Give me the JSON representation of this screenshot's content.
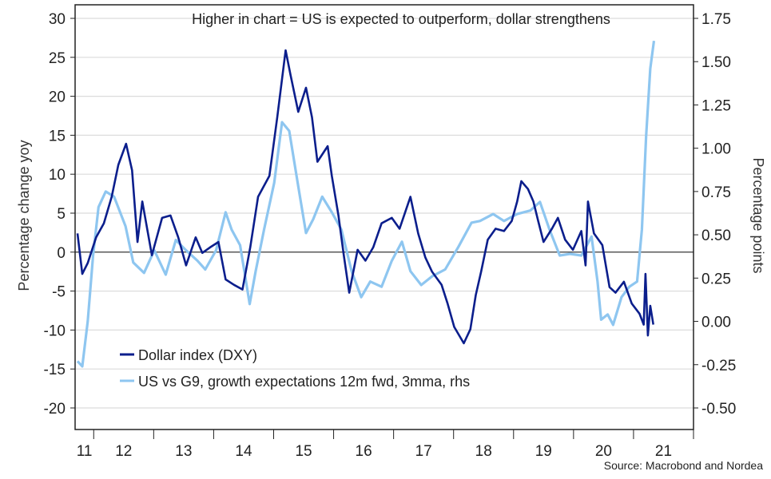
{
  "chart_data": {
    "type": "line",
    "title": "Higher in chart = US is expected to outperform, dollar strengthens",
    "source": "Source: Macrobond and Nordea",
    "ylabel": "Percentage change yoy",
    "ylabel_right": "Percentage points",
    "ylim": [
      -20,
      30
    ],
    "ylim_right": [
      -0.5,
      1.75
    ],
    "yticks": [
      "30",
      "25",
      "20",
      "15",
      "10",
      "5",
      "0",
      "-5",
      "-10",
      "-15",
      "-20"
    ],
    "yticks_right": [
      "1.75",
      "1.50",
      "1.25",
      "1.00",
      "0.75",
      "0.50",
      "0.25",
      "0.00",
      "-0.25",
      "-0.50"
    ],
    "xlim": [
      2011.69,
      2022.0
    ],
    "xtick_labels": [
      "11",
      "12",
      "13",
      "14",
      "15",
      "16",
      "17",
      "18",
      "19",
      "20",
      "21"
    ],
    "grid": true,
    "legend_position": "bottom-left",
    "series": [
      {
        "name": "Dollar index (DXY)",
        "axis": "left",
        "color": "#0b1e8c",
        "x": [
          2011.73,
          2011.81,
          2011.9,
          2012.04,
          2012.17,
          2012.3,
          2012.41,
          2012.54,
          2012.64,
          2012.73,
          2012.81,
          2012.97,
          2013.14,
          2013.28,
          2013.41,
          2013.54,
          2013.7,
          2013.81,
          2013.94,
          2014.08,
          2014.2,
          2014.34,
          2014.48,
          2014.61,
          2014.74,
          2014.93,
          2015.06,
          2015.2,
          2015.28,
          2015.41,
          2015.54,
          2015.64,
          2015.73,
          2015.9,
          2015.97,
          2016.08,
          2016.17,
          2016.26,
          2016.4,
          2016.53,
          2016.66,
          2016.8,
          2016.97,
          2017.1,
          2017.28,
          2017.41,
          2017.53,
          2017.64,
          2017.8,
          2017.9,
          2018.01,
          2018.17,
          2018.28,
          2018.37,
          2018.46,
          2018.57,
          2018.7,
          2018.84,
          2018.97,
          2019.06,
          2019.13,
          2019.24,
          2019.33,
          2019.41,
          2019.5,
          2019.64,
          2019.74,
          2019.86,
          2019.99,
          2020.13,
          2020.2,
          2020.24,
          2020.34,
          2020.48,
          2020.6,
          2020.7,
          2020.84,
          2020.97,
          2021.1,
          2021.17,
          2021.2,
          2021.24,
          2021.28,
          2021.33
        ],
        "y": [
          2.4,
          -2.8,
          -1.4,
          1.9,
          3.7,
          7.1,
          11.2,
          13.9,
          10.5,
          1.3,
          6.5,
          -0.4,
          4.4,
          4.7,
          1.9,
          -1.7,
          1.9,
          -0.1,
          0.6,
          1.3,
          -3.5,
          -4.2,
          -4.8,
          0.6,
          7.1,
          9.8,
          17.3,
          25.9,
          22.8,
          18.0,
          21.1,
          17.3,
          11.6,
          13.6,
          9.8,
          4.7,
          -0.4,
          -5.2,
          0.3,
          -1.1,
          0.6,
          3.7,
          4.4,
          3.0,
          7.1,
          2.4,
          -0.7,
          -2.5,
          -4.2,
          -6.6,
          -9.6,
          -11.7,
          -9.9,
          -5.5,
          -2.5,
          1.6,
          3.0,
          2.7,
          4.0,
          6.5,
          9.1,
          8.1,
          6.5,
          4.0,
          1.3,
          3.0,
          4.4,
          1.6,
          0.3,
          2.7,
          -1.7,
          6.5,
          2.4,
          0.9,
          -4.5,
          -5.2,
          -3.8,
          -6.6,
          -7.9,
          -9.3,
          -2.8,
          -10.7,
          -6.9,
          -9.3
        ]
      },
      {
        "name": "US vs G9, growth expectations 12m fwd, 3mma, rhs",
        "axis": "right",
        "color": "#8ec6f0",
        "x": [
          2011.73,
          2011.81,
          2011.9,
          2011.99,
          2012.08,
          2012.2,
          2012.34,
          2012.53,
          2012.66,
          2012.84,
          2013.01,
          2013.2,
          2013.37,
          2013.54,
          2013.73,
          2013.86,
          2014.04,
          2014.2,
          2014.3,
          2014.44,
          2014.6,
          2014.7,
          2014.84,
          2015.01,
          2015.14,
          2015.26,
          2015.41,
          2015.54,
          2015.66,
          2015.81,
          2015.97,
          2016.13,
          2016.3,
          2016.46,
          2016.61,
          2016.8,
          2016.97,
          2017.14,
          2017.28,
          2017.46,
          2017.64,
          2017.86,
          2018.08,
          2018.3,
          2018.44,
          2018.66,
          2018.84,
          2019.06,
          2019.28,
          2019.44,
          2019.6,
          2019.77,
          2019.94,
          2020.13,
          2020.3,
          2020.4,
          2020.46,
          2020.57,
          2020.66,
          2020.8,
          2020.93,
          2021.06,
          2021.14,
          2021.21,
          2021.28,
          2021.34
        ],
        "y": [
          -0.23,
          -0.26,
          0.0,
          0.38,
          0.66,
          0.75,
          0.72,
          0.55,
          0.34,
          0.28,
          0.41,
          0.27,
          0.47,
          0.41,
          0.35,
          0.3,
          0.41,
          0.63,
          0.53,
          0.44,
          0.1,
          0.29,
          0.53,
          0.8,
          1.15,
          1.1,
          0.78,
          0.51,
          0.59,
          0.72,
          0.63,
          0.53,
          0.29,
          0.14,
          0.23,
          0.2,
          0.35,
          0.46,
          0.29,
          0.21,
          0.26,
          0.3,
          0.43,
          0.57,
          0.58,
          0.62,
          0.58,
          0.62,
          0.64,
          0.69,
          0.53,
          0.38,
          0.39,
          0.38,
          0.49,
          0.23,
          0.01,
          0.04,
          -0.02,
          0.14,
          0.2,
          0.23,
          0.53,
          1.07,
          1.46,
          1.62
        ]
      }
    ]
  }
}
